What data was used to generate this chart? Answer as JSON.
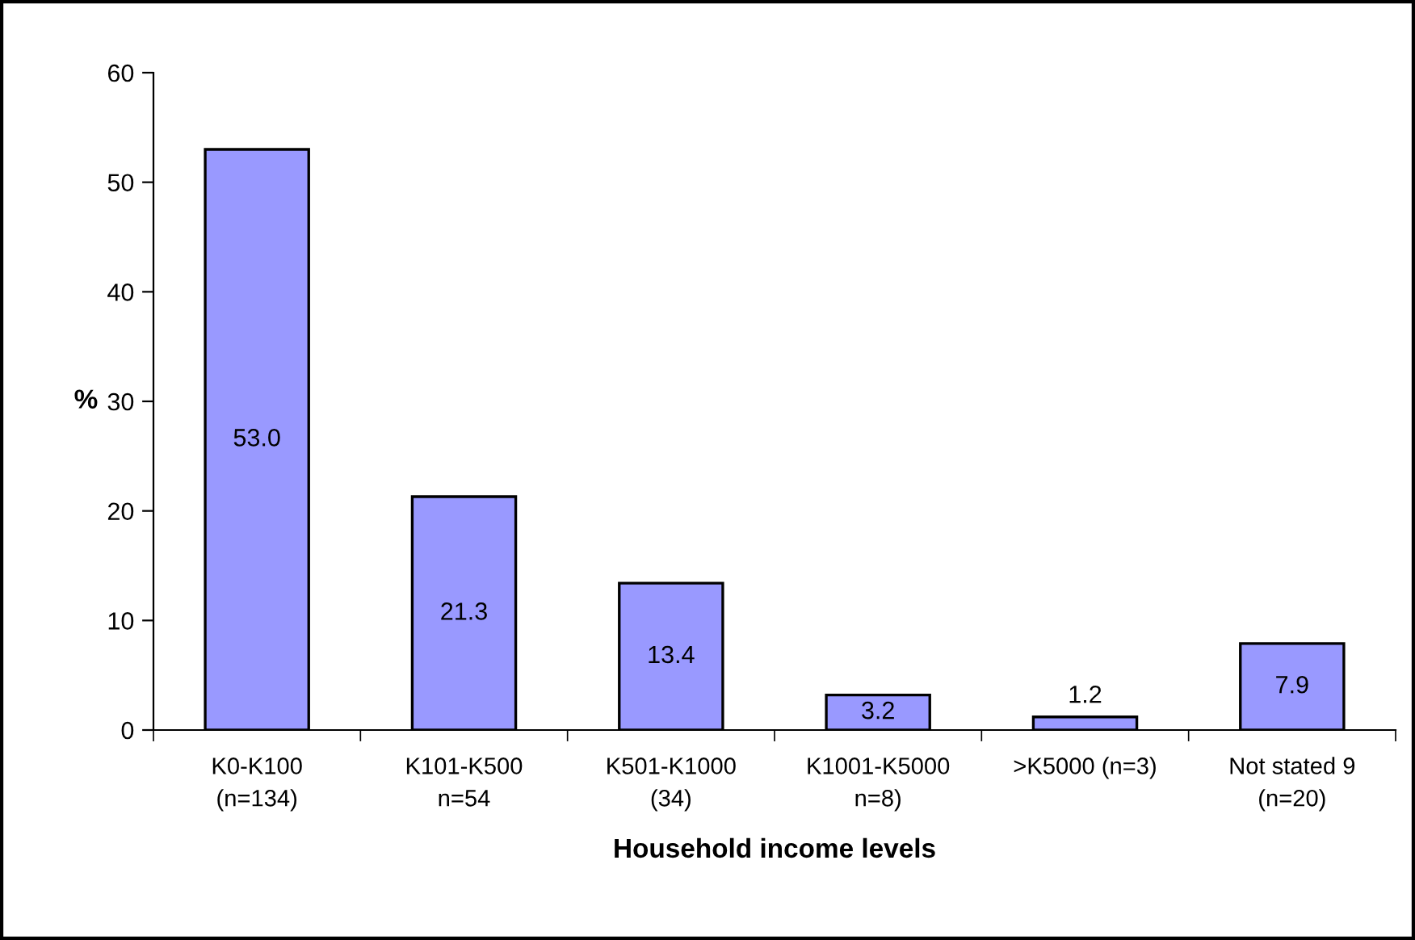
{
  "chart_data": {
    "type": "bar",
    "xlabel": "Household income levels",
    "ylabel": "%",
    "categories": [
      "K0-K100\n(n=134)",
      "K101-K500\nn=54",
      "K501-K1000\n(34)",
      "K1001-K5000\nn=8)",
      ">K5000 (n=3)",
      "Not stated 9\n(n=20)"
    ],
    "values": [
      53.0,
      21.3,
      13.4,
      3.2,
      1.2,
      7.9
    ],
    "value_labels": [
      "53.0",
      "21.3",
      "13.4",
      "3.2",
      "1.2",
      "7.9"
    ],
    "color": "#9999ff",
    "ylim": [
      0,
      60
    ],
    "yticks": [
      0,
      10,
      20,
      30,
      40,
      50,
      60
    ],
    "grid": false
  }
}
